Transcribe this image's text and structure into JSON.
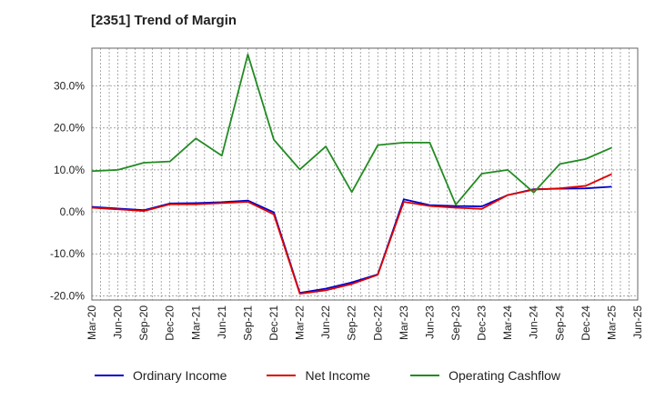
{
  "chart_data": {
    "type": "line",
    "title": "[2351]  Trend of Margin",
    "xlabel": "",
    "ylabel": "",
    "ylim": [
      -21,
      39
    ],
    "y_ticks": [
      -20,
      -10,
      0,
      10,
      20,
      30
    ],
    "y_tick_labels": [
      "-20.0%",
      "-10.0%",
      "0.0%",
      "10.0%",
      "20.0%",
      "30.0%"
    ],
    "x_tick_labels": [
      "Mar-20",
      "Jun-20",
      "Sep-20",
      "Dec-20",
      "Mar-21",
      "Jun-21",
      "Sep-21",
      "Dec-21",
      "Mar-22",
      "Jun-22",
      "Sep-22",
      "Dec-22",
      "Mar-23",
      "Jun-23",
      "Sep-23",
      "Dec-23",
      "Mar-24",
      "Jun-24",
      "Sep-24",
      "Dec-24",
      "Mar-25",
      "Jun-25"
    ],
    "categories": [
      "Mar-20",
      "Jun-20",
      "Sep-20",
      "Dec-20",
      "Mar-21",
      "Jun-21",
      "Sep-21",
      "Dec-21",
      "Mar-22",
      "Jun-22",
      "Sep-22",
      "Dec-22",
      "Mar-23",
      "Jun-23",
      "Sep-23",
      "Dec-23",
      "Mar-24",
      "Jun-24",
      "Sep-24",
      "Dec-24",
      "Mar-25"
    ],
    "grid": true,
    "legend_position": "bottom",
    "series": [
      {
        "name": "Ordinary Income",
        "color": "#0000cc",
        "values": [
          1.2,
          0.8,
          0.4,
          2.0,
          2.1,
          2.3,
          2.7,
          -0.1,
          -19.3,
          -18.3,
          -16.8,
          -14.9,
          3.0,
          1.6,
          1.4,
          1.3,
          4.0,
          5.4,
          5.5,
          5.6,
          6.0
        ]
      },
      {
        "name": "Net Income",
        "color": "#dd0000",
        "values": [
          1.0,
          0.6,
          0.2,
          1.8,
          1.8,
          2.1,
          2.4,
          -0.6,
          -19.5,
          -18.7,
          -17.2,
          -15.0,
          2.4,
          1.4,
          1.0,
          0.7,
          4.0,
          5.3,
          5.6,
          6.2,
          9.0
        ]
      },
      {
        "name": "Operating Cashflow",
        "color": "#228b22",
        "values": [
          9.7,
          10.0,
          11.7,
          12.0,
          17.5,
          13.4,
          37.5,
          17.2,
          10.1,
          15.6,
          4.7,
          15.9,
          16.5,
          16.5,
          1.7,
          9.1,
          10.0,
          4.6,
          11.4,
          12.6,
          15.3
        ]
      }
    ]
  }
}
